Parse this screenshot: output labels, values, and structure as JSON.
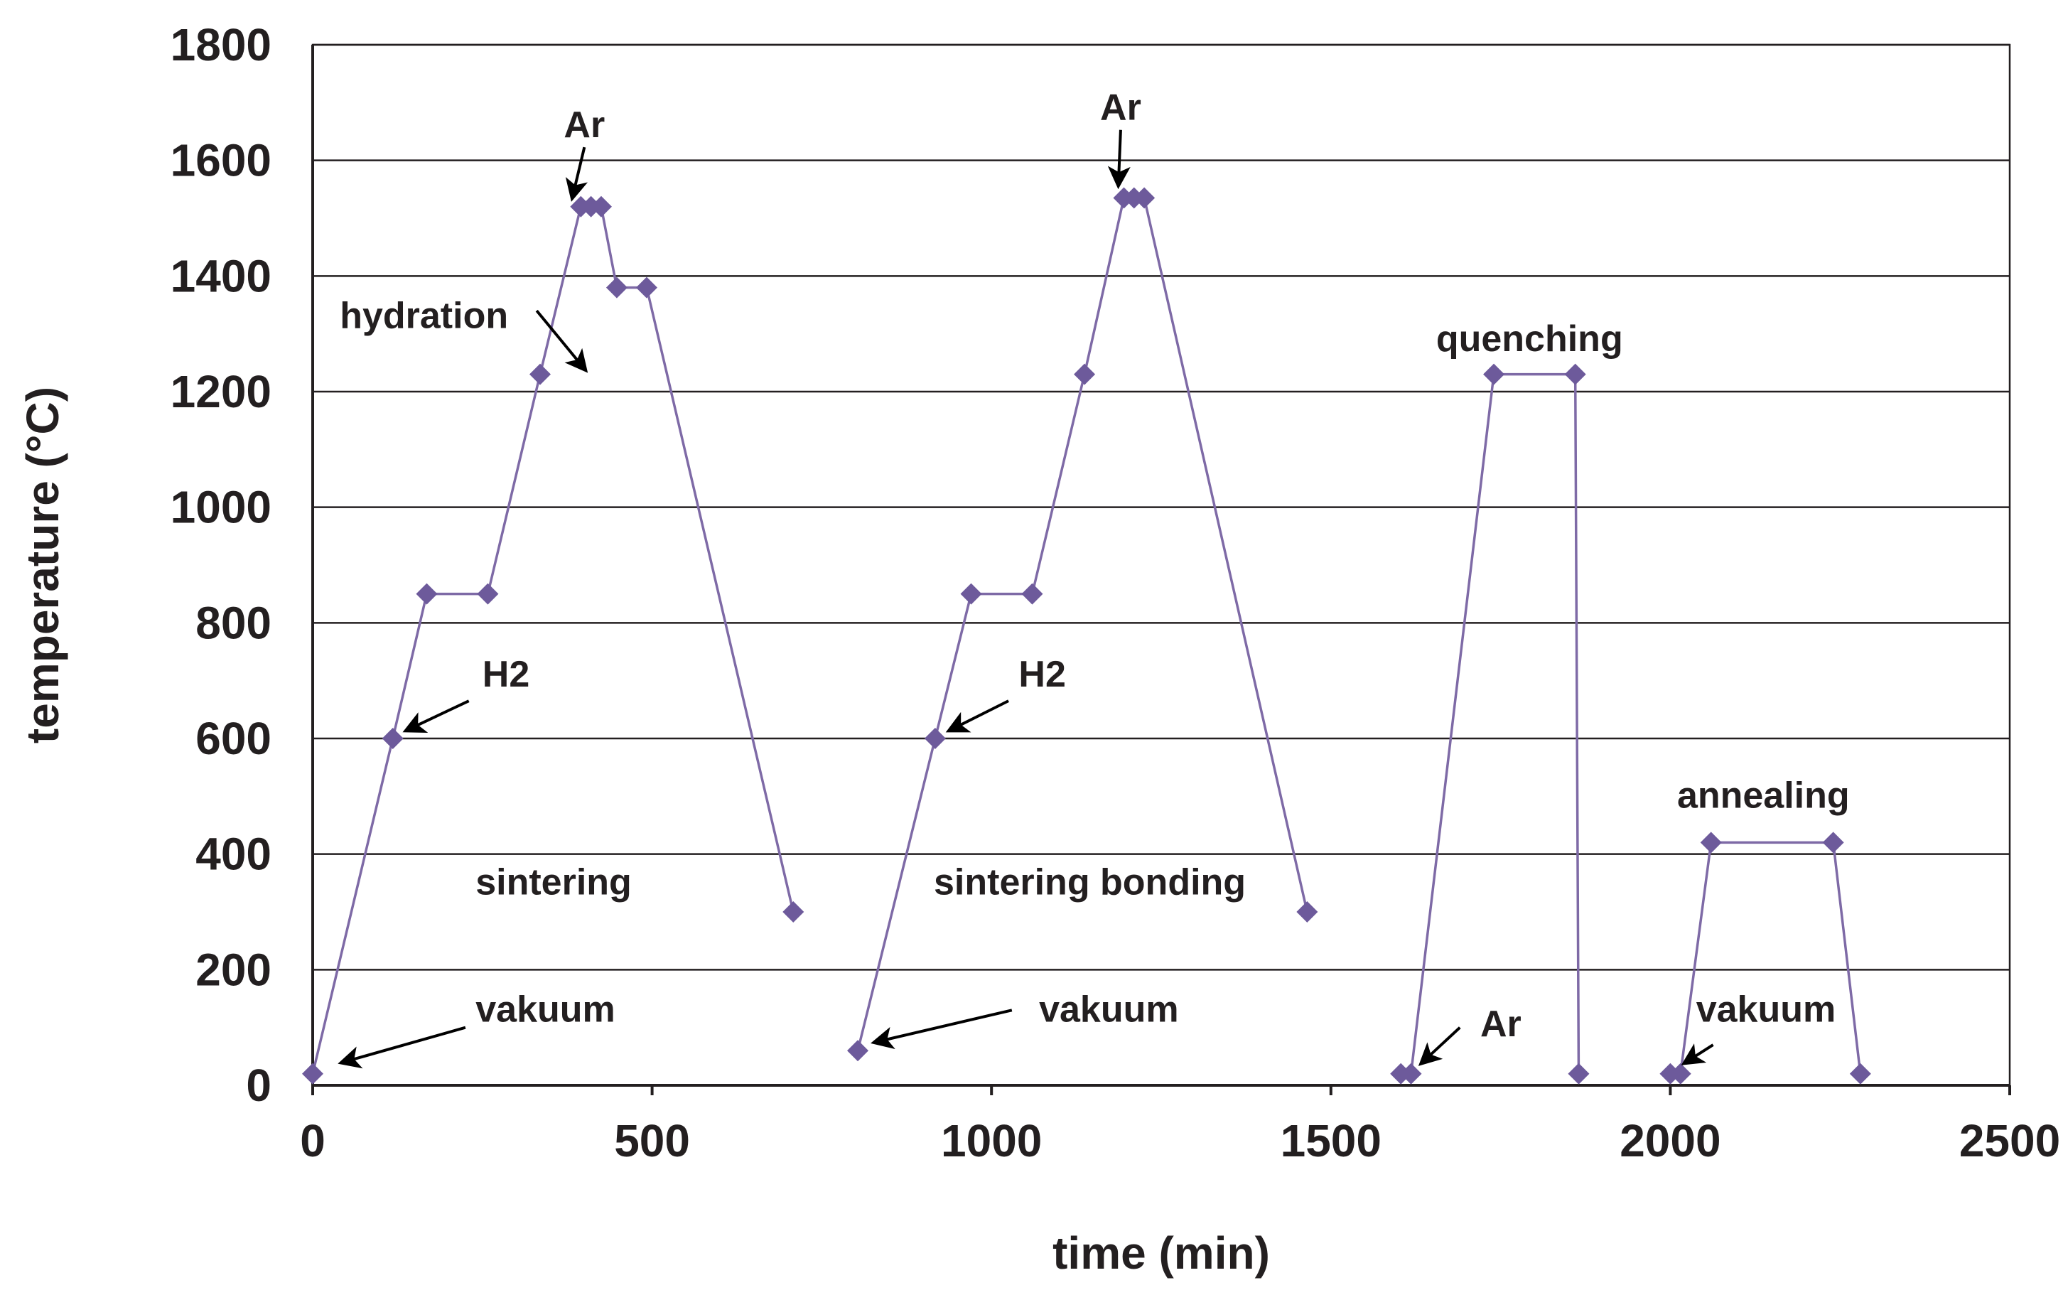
{
  "chart_data": {
    "type": "line",
    "xlabel": "time (min)",
    "ylabel": "temperature (°C)",
    "xlim": [
      0,
      2500
    ],
    "ylim": [
      0,
      1800
    ],
    "xticks": [
      0,
      500,
      1000,
      1500,
      2000,
      2500
    ],
    "yticks": [
      0,
      200,
      400,
      600,
      800,
      1000,
      1200,
      1400,
      1600,
      1800
    ],
    "xtick_labels": [
      "0",
      "500",
      "1000",
      "1500",
      "2000",
      "2500"
    ],
    "ytick_labels": [
      "0",
      "200",
      "400",
      "600",
      "800",
      "1000",
      "1200",
      "1400",
      "1600",
      "1800"
    ],
    "grid": "horizontal",
    "series": [
      {
        "name": "sintering",
        "x": [
          0,
          118,
          168,
          258,
          335,
          395,
          410,
          425,
          448,
          492,
          708
        ],
        "y": [
          20,
          600,
          850,
          850,
          1230,
          1520,
          1520,
          1520,
          1380,
          1380,
          300
        ]
      },
      {
        "name": "sintering bonding",
        "x": [
          803,
          917,
          970,
          1060,
          1137,
          1195,
          1210,
          1225,
          1465
        ],
        "y": [
          60,
          600,
          850,
          850,
          1230,
          1535,
          1535,
          1535,
          300
        ]
      },
      {
        "name": "quenching",
        "x": [
          1603,
          1618,
          1740,
          1860,
          1865
        ],
        "y": [
          20,
          20,
          1230,
          1230,
          20
        ]
      },
      {
        "name": "annealing",
        "x": [
          2000,
          2015,
          2060,
          2240,
          2280
        ],
        "y": [
          20,
          20,
          420,
          420,
          20
        ]
      }
    ],
    "annotations": [
      {
        "label": "Ar",
        "x": 370,
        "y": 1640,
        "arrow_to": [
          383,
          1538
        ]
      },
      {
        "label": "hydration",
        "x": 40,
        "y": 1310,
        "arrow_from": [
          330,
          1340
        ],
        "arrow_to": [
          400,
          1240
        ]
      },
      {
        "label": "H2",
        "x": 250,
        "y": 690,
        "arrow_from": [
          230,
          665
        ],
        "arrow_to": [
          140,
          615
        ]
      },
      {
        "label": "sintering",
        "x": 240,
        "y": 330
      },
      {
        "label": "vakuum",
        "x": 240,
        "y": 110,
        "arrow_from": [
          225,
          100
        ],
        "arrow_to": [
          45,
          40
        ]
      },
      {
        "label": "Ar",
        "x": 1160,
        "y": 1670,
        "arrow_to": [
          1187,
          1560
        ]
      },
      {
        "label": "H2",
        "x": 1040,
        "y": 690,
        "arrow_from": [
          1025,
          665
        ],
        "arrow_to": [
          940,
          615
        ]
      },
      {
        "label": "sintering bonding",
        "x": 915,
        "y": 330
      },
      {
        "label": "vakuum",
        "x": 1070,
        "y": 110,
        "arrow_from": [
          1030,
          130
        ],
        "arrow_to": [
          830,
          75
        ]
      },
      {
        "label": "quenching",
        "x": 1655,
        "y": 1270
      },
      {
        "label": "Ar",
        "x": 1720,
        "y": 85,
        "arrow_from": [
          1690,
          100
        ],
        "arrow_to": [
          1635,
          40
        ]
      },
      {
        "label": "annealing",
        "x": 2010,
        "y": 480
      },
      {
        "label": "vakuum",
        "x": 2038,
        "y": 110,
        "arrow_from": [
          2063,
          70
        ],
        "arrow_to": [
          2023,
          40
        ]
      }
    ]
  }
}
